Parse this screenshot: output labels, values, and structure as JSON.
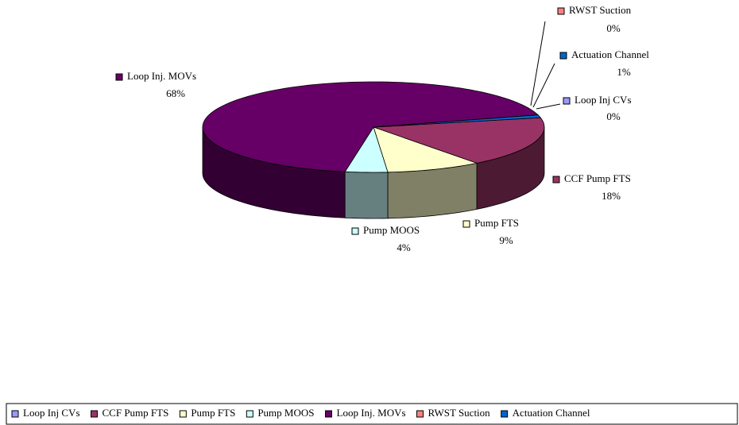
{
  "chart_data": {
    "type": "pie",
    "categories": [
      "Loop Inj CVs",
      "CCF Pump FTS",
      "Pump FTS",
      "Pump MOOS",
      "Loop Inj. MOVs",
      "RWST Suction",
      "Actuation Channel"
    ],
    "values": [
      0,
      18,
      9,
      4,
      68,
      0,
      1
    ],
    "value_labels": [
      "0%",
      "18%",
      "9%",
      "4%",
      "68%",
      "0%",
      "1%"
    ],
    "colors": [
      "#9999ff",
      "#993366",
      "#ffffcc",
      "#ccffff",
      "#660066",
      "#ff8080",
      "#0066cc"
    ],
    "legend": "bottom"
  }
}
